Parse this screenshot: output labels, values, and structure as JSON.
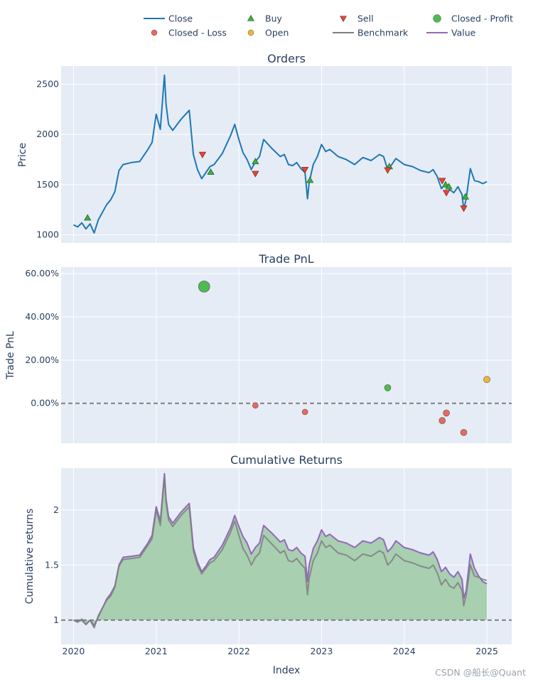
{
  "legend": [
    {
      "label": "Close",
      "kind": "line",
      "color": "#1f77b4"
    },
    {
      "label": "Buy",
      "kind": "triangle-up",
      "color": "#37b13f"
    },
    {
      "label": "Sell",
      "kind": "triangle-down",
      "color": "#ea4335"
    },
    {
      "label": "Closed - Profit",
      "kind": "circle",
      "color": "#4dbb51"
    },
    {
      "label": "Closed - Loss",
      "kind": "circle",
      "color": "#e8695f"
    },
    {
      "label": "Open",
      "kind": "circle",
      "color": "#f4b434"
    },
    {
      "label": "Benchmark",
      "kind": "line",
      "color": "#7f7f7f"
    },
    {
      "label": "Value",
      "kind": "line",
      "color": "#9467bd"
    }
  ],
  "watermark": "CSDN @船长@Quant",
  "x_axis": {
    "title": "Index",
    "ticks": [
      "2020",
      "2021",
      "2022",
      "2023",
      "2024",
      "2025"
    ],
    "range": [
      2019.85,
      2025.3
    ]
  },
  "chart_data": [
    {
      "type": "line",
      "title": "Orders",
      "ylabel": "Price",
      "ylim": [
        920,
        2680
      ],
      "yticks": [
        1000,
        1500,
        2000,
        2500
      ],
      "ytick_labels": [
        "1000",
        "1500",
        "2000",
        "2500"
      ],
      "close": {
        "name": "Close",
        "x": [
          2020.0,
          2020.05,
          2020.1,
          2020.15,
          2020.2,
          2020.25,
          2020.3,
          2020.4,
          2020.45,
          2020.5,
          2020.55,
          2020.6,
          2020.7,
          2020.8,
          2020.9,
          2020.95,
          2021.0,
          2021.05,
          2021.1,
          2021.12,
          2021.15,
          2021.2,
          2021.3,
          2021.4,
          2021.45,
          2021.5,
          2021.55,
          2021.6,
          2021.65,
          2021.7,
          2021.8,
          2021.9,
          2021.95,
          2022.0,
          2022.05,
          2022.1,
          2022.15,
          2022.2,
          2022.25,
          2022.3,
          2022.4,
          2022.45,
          2022.5,
          2022.55,
          2022.6,
          2022.65,
          2022.7,
          2022.75,
          2022.8,
          2022.83,
          2022.85,
          2022.9,
          2022.95,
          2023.0,
          2023.05,
          2023.1,
          2023.2,
          2023.3,
          2023.4,
          2023.5,
          2023.6,
          2023.7,
          2023.75,
          2023.8,
          2023.85,
          2023.9,
          2024.0,
          2024.1,
          2024.2,
          2024.3,
          2024.35,
          2024.4,
          2024.45,
          2024.5,
          2024.55,
          2024.6,
          2024.65,
          2024.7,
          2024.72,
          2024.75,
          2024.8,
          2024.85,
          2024.9,
          2024.95,
          2025.0
        ],
        "y": [
          1100,
          1080,
          1120,
          1060,
          1110,
          1020,
          1150,
          1300,
          1350,
          1430,
          1640,
          1700,
          1720,
          1730,
          1850,
          1920,
          2200,
          2050,
          2590,
          2300,
          2100,
          2040,
          2150,
          2240,
          1800,
          1650,
          1560,
          1620,
          1680,
          1700,
          1810,
          1990,
          2100,
          1950,
          1820,
          1750,
          1650,
          1730,
          1780,
          1950,
          1860,
          1820,
          1780,
          1800,
          1700,
          1690,
          1720,
          1660,
          1620,
          1360,
          1520,
          1700,
          1780,
          1900,
          1830,
          1850,
          1780,
          1750,
          1700,
          1770,
          1740,
          1800,
          1780,
          1650,
          1700,
          1760,
          1700,
          1680,
          1640,
          1620,
          1650,
          1580,
          1460,
          1510,
          1450,
          1420,
          1480,
          1400,
          1250,
          1360,
          1660,
          1540,
          1530,
          1510,
          1530
        ]
      },
      "buys": [
        {
          "x": 2020.17,
          "y": 1170
        },
        {
          "x": 2021.66,
          "y": 1625
        },
        {
          "x": 2022.2,
          "y": 1730
        },
        {
          "x": 2022.86,
          "y": 1545
        },
        {
          "x": 2023.82,
          "y": 1680
        },
        {
          "x": 2024.5,
          "y": 1500
        },
        {
          "x": 2024.54,
          "y": 1480
        },
        {
          "x": 2024.74,
          "y": 1380
        }
      ],
      "sells": [
        {
          "x": 2021.56,
          "y": 1800
        },
        {
          "x": 2022.2,
          "y": 1610
        },
        {
          "x": 2022.8,
          "y": 1650
        },
        {
          "x": 2023.8,
          "y": 1645
        },
        {
          "x": 2024.46,
          "y": 1540
        },
        {
          "x": 2024.51,
          "y": 1420
        },
        {
          "x": 2024.72,
          "y": 1265
        }
      ]
    },
    {
      "type": "scatter",
      "title": "Trade PnL",
      "ylabel": "Trade PnL",
      "ylim": [
        -0.185,
        0.63
      ],
      "yticks": [
        0.0,
        0.2,
        0.4,
        0.6
      ],
      "ytick_labels": [
        "0.00%",
        "20.00%",
        "40.00%",
        "60.00%"
      ],
      "zero_line": 0,
      "points": [
        {
          "x": 2021.58,
          "y": 0.54,
          "status": "Closed - Profit",
          "size": 8
        },
        {
          "x": 2022.2,
          "y": -0.01,
          "status": "Closed - Loss",
          "size": 4
        },
        {
          "x": 2022.8,
          "y": -0.04,
          "status": "Closed - Loss",
          "size": 4
        },
        {
          "x": 2023.8,
          "y": 0.072,
          "status": "Closed - Profit",
          "size": 4.5
        },
        {
          "x": 2024.46,
          "y": -0.08,
          "status": "Closed - Loss",
          "size": 4.5
        },
        {
          "x": 2024.51,
          "y": -0.045,
          "status": "Closed - Loss",
          "size": 4.5
        },
        {
          "x": 2024.72,
          "y": -0.135,
          "status": "Closed - Loss",
          "size": 4.5
        },
        {
          "x": 2025.0,
          "y": 0.11,
          "status": "Open",
          "size": 4.5
        }
      ]
    },
    {
      "type": "area",
      "title": "Cumulative Returns",
      "ylabel": "Cumulative returns",
      "ylim": [
        0.78,
        2.38
      ],
      "yticks": [
        1,
        1.5,
        2
      ],
      "ytick_labels": [
        "1",
        "1.5",
        "2"
      ],
      "baseline": 1,
      "x": [
        2020.0,
        2020.05,
        2020.1,
        2020.15,
        2020.2,
        2020.25,
        2020.3,
        2020.4,
        2020.45,
        2020.5,
        2020.55,
        2020.6,
        2020.7,
        2020.8,
        2020.9,
        2020.95,
        2021.0,
        2021.05,
        2021.1,
        2021.12,
        2021.15,
        2021.2,
        2021.3,
        2021.4,
        2021.45,
        2021.5,
        2021.55,
        2021.6,
        2021.65,
        2021.7,
        2021.8,
        2021.9,
        2021.95,
        2022.0,
        2022.05,
        2022.1,
        2022.15,
        2022.2,
        2022.25,
        2022.3,
        2022.4,
        2022.45,
        2022.5,
        2022.55,
        2022.6,
        2022.65,
        2022.7,
        2022.75,
        2022.8,
        2022.83,
        2022.85,
        2022.9,
        2022.95,
        2023.0,
        2023.05,
        2023.1,
        2023.2,
        2023.3,
        2023.4,
        2023.5,
        2023.6,
        2023.7,
        2023.75,
        2023.8,
        2023.85,
        2023.9,
        2024.0,
        2024.1,
        2024.2,
        2024.3,
        2024.35,
        2024.4,
        2024.45,
        2024.5,
        2024.55,
        2024.6,
        2024.65,
        2024.7,
        2024.72,
        2024.75,
        2024.8,
        2024.85,
        2024.9,
        2024.95,
        2025.0
      ],
      "benchmark": [
        1.0,
        0.98,
        1.01,
        0.96,
        1.0,
        0.93,
        1.04,
        1.18,
        1.22,
        1.3,
        1.49,
        1.55,
        1.56,
        1.57,
        1.68,
        1.74,
        2.0,
        1.86,
        2.3,
        2.07,
        1.91,
        1.85,
        1.95,
        2.03,
        1.63,
        1.5,
        1.42,
        1.47,
        1.52,
        1.54,
        1.64,
        1.8,
        1.9,
        1.77,
        1.65,
        1.59,
        1.5,
        1.57,
        1.61,
        1.77,
        1.69,
        1.65,
        1.61,
        1.63,
        1.54,
        1.53,
        1.56,
        1.51,
        1.47,
        1.23,
        1.38,
        1.54,
        1.61,
        1.72,
        1.66,
        1.68,
        1.61,
        1.59,
        1.54,
        1.6,
        1.58,
        1.63,
        1.61,
        1.5,
        1.54,
        1.6,
        1.54,
        1.52,
        1.49,
        1.47,
        1.5,
        1.43,
        1.32,
        1.37,
        1.31,
        1.29,
        1.34,
        1.27,
        1.13,
        1.23,
        1.5,
        1.4,
        1.39,
        1.37,
        1.36
      ],
      "value": [
        1.0,
        0.99,
        1.0,
        0.96,
        1.0,
        0.95,
        1.03,
        1.19,
        1.24,
        1.31,
        1.5,
        1.57,
        1.58,
        1.59,
        1.7,
        1.77,
        2.03,
        1.9,
        2.33,
        2.1,
        1.94,
        1.88,
        1.98,
        2.06,
        1.66,
        1.53,
        1.44,
        1.49,
        1.55,
        1.57,
        1.68,
        1.84,
        1.95,
        1.85,
        1.76,
        1.7,
        1.6,
        1.66,
        1.7,
        1.86,
        1.79,
        1.75,
        1.71,
        1.73,
        1.64,
        1.63,
        1.66,
        1.61,
        1.58,
        1.35,
        1.5,
        1.65,
        1.72,
        1.82,
        1.76,
        1.78,
        1.72,
        1.7,
        1.66,
        1.72,
        1.7,
        1.75,
        1.73,
        1.62,
        1.66,
        1.72,
        1.66,
        1.64,
        1.61,
        1.59,
        1.62,
        1.55,
        1.44,
        1.48,
        1.42,
        1.39,
        1.44,
        1.37,
        1.2,
        1.27,
        1.6,
        1.47,
        1.4,
        1.35,
        1.33
      ],
      "fill_color": "#a0cca8"
    }
  ]
}
